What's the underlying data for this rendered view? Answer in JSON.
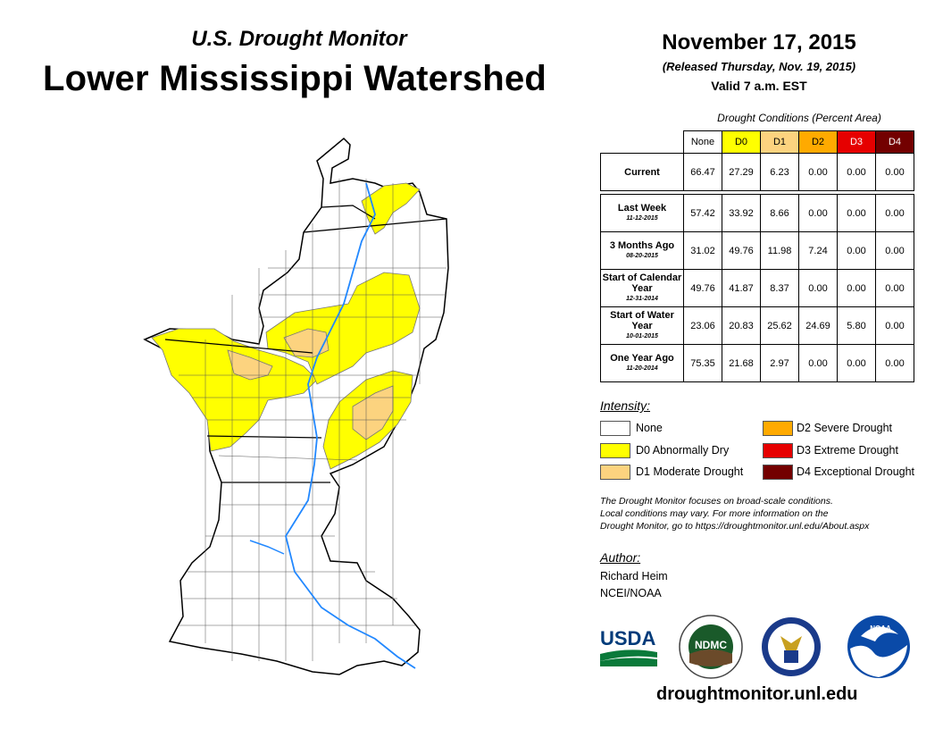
{
  "header": {
    "subtitle": "U.S. Drought Monitor",
    "title": "Lower Mississippi Watershed",
    "date": "November 17, 2015",
    "released": "(Released Thursday, Nov. 19, 2015)",
    "valid": "Valid 7 a.m. EST"
  },
  "table": {
    "title": "Drought Conditions (Percent Area)",
    "columns": [
      "None",
      "D0",
      "D1",
      "D2",
      "D3",
      "D4"
    ],
    "column_colors": [
      "#ffffff",
      "#ffff00",
      "#fcd37f",
      "#ffaa00",
      "#e60000",
      "#730000"
    ],
    "rows": [
      {
        "label": "Current",
        "date": "",
        "values": [
          "66.47",
          "27.29",
          "6.23",
          "0.00",
          "0.00",
          "0.00"
        ]
      },
      {
        "label": "Last Week",
        "date": "11-12-2015",
        "values": [
          "57.42",
          "33.92",
          "8.66",
          "0.00",
          "0.00",
          "0.00"
        ]
      },
      {
        "label": "3 Months Ago",
        "date": "08-20-2015",
        "values": [
          "31.02",
          "49.76",
          "11.98",
          "7.24",
          "0.00",
          "0.00"
        ]
      },
      {
        "label": "Start of Calendar Year",
        "date": "12-31-2014",
        "values": [
          "49.76",
          "41.87",
          "8.37",
          "0.00",
          "0.00",
          "0.00"
        ]
      },
      {
        "label": "Start of Water Year",
        "date": "10-01-2015",
        "values": [
          "23.06",
          "20.83",
          "25.62",
          "24.69",
          "5.80",
          "0.00"
        ]
      },
      {
        "label": "One Year Ago",
        "date": "11-20-2014",
        "values": [
          "75.35",
          "21.68",
          "2.97",
          "0.00",
          "0.00",
          "0.00"
        ]
      }
    ]
  },
  "legend": {
    "title": "Intensity:",
    "items": [
      {
        "label": "None",
        "color": "#ffffff"
      },
      {
        "label": "D0 Abnormally Dry",
        "color": "#ffff00"
      },
      {
        "label": "D1 Moderate Drought",
        "color": "#fcd37f"
      },
      {
        "label": "D2 Severe Drought",
        "color": "#ffaa00"
      },
      {
        "label": "D3 Extreme Drought",
        "color": "#e60000"
      },
      {
        "label": "D4 Exceptional Drought",
        "color": "#730000"
      }
    ]
  },
  "note": {
    "line1": "The Drought Monitor focuses on broad-scale conditions.",
    "line2": "Local conditions may vary. For more information on the",
    "line3": "Drought Monitor, go to https://droughtmonitor.unl.edu/About.aspx"
  },
  "author": {
    "label": "Author:",
    "name": "Richard Heim",
    "org": "NCEI/NOAA"
  },
  "logos": {
    "usda": "USDA",
    "ndmc": "NDMC",
    "noaa": "NOAA"
  },
  "website": "droughtmonitor.unl.edu"
}
